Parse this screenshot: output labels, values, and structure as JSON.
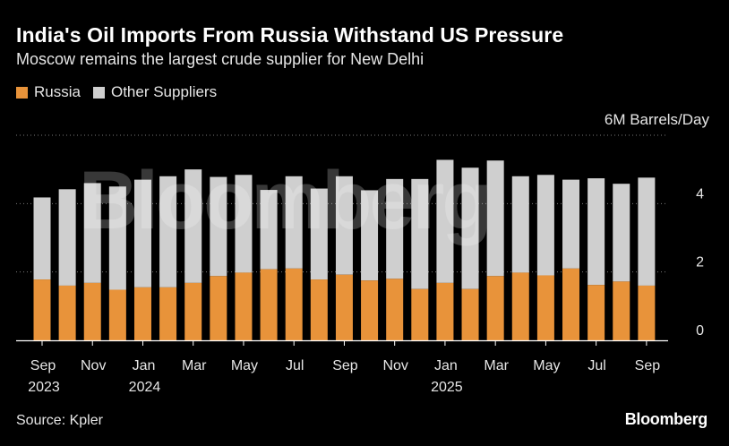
{
  "header": {
    "title": "India's Oil Imports From Russia Withstand US Pressure",
    "subtitle": "Moscow remains the largest crude supplier for New Delhi"
  },
  "footer": {
    "source": "Source: Kpler",
    "brand": "Bloomberg"
  },
  "watermark": "Bloomberg",
  "chart_data": {
    "type": "bar",
    "stacked": true,
    "unit_label": "6M Barrels/Day",
    "categories": [
      "Sep 2023",
      "Oct 2023",
      "Nov 2023",
      "Dec 2023",
      "Jan 2024",
      "Feb 2024",
      "Mar 2024",
      "Apr 2024",
      "May 2024",
      "Jun 2024",
      "Jul 2024",
      "Aug 2024",
      "Sep 2024",
      "Oct 2024",
      "Nov 2024",
      "Dec 2024",
      "Jan 2025",
      "Feb 2025",
      "Mar 2025",
      "Apr 2025",
      "May 2025",
      "Jun 2025",
      "Jul 2025",
      "Aug 2025",
      "Sep 2025"
    ],
    "x_tick_labels": [
      {
        "index": 0,
        "month": "Sep",
        "year": "2023"
      },
      {
        "index": 2,
        "month": "Nov",
        "year": ""
      },
      {
        "index": 4,
        "month": "Jan",
        "year": "2024"
      },
      {
        "index": 6,
        "month": "Mar",
        "year": ""
      },
      {
        "index": 8,
        "month": "May",
        "year": ""
      },
      {
        "index": 10,
        "month": "Jul",
        "year": ""
      },
      {
        "index": 12,
        "month": "Sep",
        "year": ""
      },
      {
        "index": 14,
        "month": "Nov",
        "year": ""
      },
      {
        "index": 16,
        "month": "Jan",
        "year": "2025"
      },
      {
        "index": 18,
        "month": "Mar",
        "year": ""
      },
      {
        "index": 20,
        "month": "May",
        "year": ""
      },
      {
        "index": 22,
        "month": "Jul",
        "year": ""
      },
      {
        "index": 24,
        "month": "Sep",
        "year": ""
      }
    ],
    "series": [
      {
        "name": "Russia",
        "color": "#e8933a",
        "values": [
          1.78,
          1.6,
          1.68,
          1.48,
          1.55,
          1.55,
          1.68,
          1.88,
          1.98,
          2.08,
          2.1,
          1.78,
          1.92,
          1.75,
          1.8,
          1.5,
          1.68,
          1.5,
          1.88,
          1.98,
          1.9,
          2.1,
          1.62,
          1.72,
          1.6
        ]
      },
      {
        "name": "Other Suppliers",
        "color": "#cfcfcf",
        "values": [
          2.4,
          2.82,
          2.92,
          3.02,
          3.15,
          3.25,
          3.32,
          2.9,
          2.86,
          2.32,
          2.7,
          2.66,
          2.88,
          2.64,
          2.92,
          3.22,
          3.6,
          3.55,
          3.38,
          2.82,
          2.94,
          2.6,
          3.12,
          2.86,
          3.16
        ]
      }
    ],
    "y_ticks": [
      0,
      2,
      4
    ],
    "ylim": [
      0,
      6
    ],
    "gridlines": "dotted",
    "legend_position": "top-left"
  }
}
